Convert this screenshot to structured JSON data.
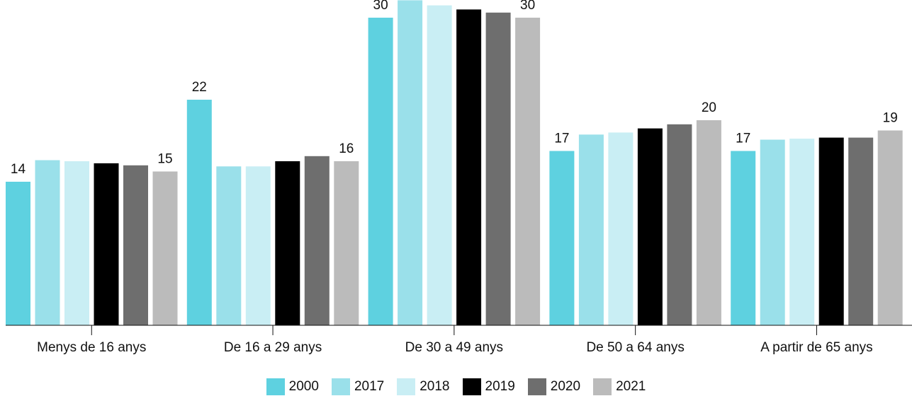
{
  "chart_data": {
    "type": "bar",
    "categories": [
      "Menys de 16 anys",
      "De 16 a 29 anys",
      "De 30 a 49 anys",
      "De 50 a 64 anys",
      "A partir de 65 anys"
    ],
    "series": [
      {
        "name": "2000",
        "color": "#5ed1e0",
        "values": [
          14,
          22,
          30,
          17,
          17
        ]
      },
      {
        "name": "2017",
        "color": "#9ae0ea",
        "values": [
          16.1,
          15.5,
          31.7,
          18.6,
          18.1
        ]
      },
      {
        "name": "2018",
        "color": "#c9eef4",
        "values": [
          16.0,
          15.5,
          31.2,
          18.8,
          18.2
        ]
      },
      {
        "name": "2019",
        "color": "#000000",
        "values": [
          15.8,
          16.0,
          30.8,
          19.2,
          18.3
        ]
      },
      {
        "name": "2020",
        "color": "#6e6e6e",
        "values": [
          15.6,
          16.5,
          30.5,
          19.6,
          18.3
        ]
      },
      {
        "name": "2021",
        "color": "#bbbbbb",
        "values": [
          15,
          16,
          30,
          20,
          19
        ]
      }
    ],
    "data_labels": [
      {
        "category": 0,
        "series": 0,
        "text": "14"
      },
      {
        "category": 0,
        "series": 5,
        "text": "15"
      },
      {
        "category": 1,
        "series": 0,
        "text": "22"
      },
      {
        "category": 1,
        "series": 5,
        "text": "16"
      },
      {
        "category": 2,
        "series": 0,
        "text": "30"
      },
      {
        "category": 2,
        "series": 5,
        "text": "30"
      },
      {
        "category": 3,
        "series": 0,
        "text": "17"
      },
      {
        "category": 3,
        "series": 5,
        "text": "20"
      },
      {
        "category": 4,
        "series": 0,
        "text": "17"
      },
      {
        "category": 4,
        "series": 5,
        "text": "19"
      }
    ],
    "ylim": [
      0,
      35
    ],
    "grid": false,
    "legend_position": "bottom-center"
  }
}
